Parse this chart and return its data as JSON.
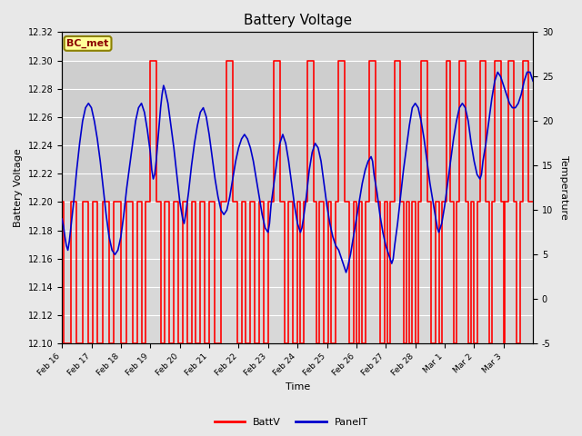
{
  "title": "Battery Voltage",
  "xlabel": "Time",
  "ylabel_left": "Battery Voltage",
  "ylabel_right": "Temperature",
  "ylim_left": [
    12.1,
    12.32
  ],
  "ylim_right": [
    -5,
    30
  ],
  "yticks_left": [
    12.1,
    12.12,
    12.14,
    12.16,
    12.18,
    12.2,
    12.22,
    12.24,
    12.26,
    12.28,
    12.3,
    12.32
  ],
  "yticks_right": [
    -5,
    0,
    5,
    10,
    15,
    20,
    25,
    30
  ],
  "bg_color": "#e8e8e8",
  "plot_bg_color": "#d8d8d8",
  "grid_color": "#ffffff",
  "battv_color": "#ff0000",
  "panelt_color": "#0000cc",
  "annotation_text": "BC_met",
  "annotation_bg": "#ffff99",
  "annotation_border": "#8B8000",
  "legend_battv": "BattV",
  "legend_panelt": "PanelT",
  "shaded_region": [
    12.2,
    12.3
  ],
  "xtick_labels": [
    "Feb 16",
    "Feb 17",
    "Feb 18",
    "Feb 19",
    "Feb 20",
    "Feb 21",
    "Feb 22",
    "Feb 23",
    "Feb 24",
    "Feb 25",
    "Feb 26",
    "Feb 27",
    "Feb 28",
    "Mar 1",
    "Mar 2",
    "Mar 3"
  ],
  "battv_data": [
    [
      0.0,
      12.2
    ],
    [
      0.05,
      12.2
    ],
    [
      0.05,
      12.1
    ],
    [
      0.3,
      12.1
    ],
    [
      0.3,
      12.2
    ],
    [
      0.5,
      12.2
    ],
    [
      0.5,
      12.1
    ],
    [
      0.7,
      12.1
    ],
    [
      0.7,
      12.2
    ],
    [
      0.9,
      12.2
    ],
    [
      0.9,
      12.1
    ],
    [
      1.05,
      12.1
    ],
    [
      1.05,
      12.2
    ],
    [
      1.2,
      12.2
    ],
    [
      1.2,
      12.1
    ],
    [
      1.4,
      12.1
    ],
    [
      1.4,
      12.2
    ],
    [
      1.6,
      12.2
    ],
    [
      1.6,
      12.1
    ],
    [
      1.75,
      12.1
    ],
    [
      1.75,
      12.2
    ],
    [
      2.0,
      12.2
    ],
    [
      2.0,
      12.1
    ],
    [
      2.2,
      12.1
    ],
    [
      2.2,
      12.2
    ],
    [
      2.4,
      12.2
    ],
    [
      2.4,
      12.1
    ],
    [
      2.55,
      12.1
    ],
    [
      2.55,
      12.2
    ],
    [
      2.7,
      12.2
    ],
    [
      2.7,
      12.1
    ],
    [
      2.85,
      12.1
    ],
    [
      2.85,
      12.2
    ],
    [
      3.0,
      12.2
    ],
    [
      3.0,
      12.3
    ],
    [
      3.2,
      12.3
    ],
    [
      3.2,
      12.2
    ],
    [
      3.35,
      12.2
    ],
    [
      3.35,
      12.1
    ],
    [
      3.5,
      12.1
    ],
    [
      3.5,
      12.2
    ],
    [
      3.65,
      12.2
    ],
    [
      3.65,
      12.1
    ],
    [
      3.8,
      12.1
    ],
    [
      3.8,
      12.2
    ],
    [
      3.95,
      12.2
    ],
    [
      3.95,
      12.1
    ],
    [
      4.1,
      12.1
    ],
    [
      4.1,
      12.2
    ],
    [
      4.25,
      12.2
    ],
    [
      4.25,
      12.1
    ],
    [
      4.4,
      12.1
    ],
    [
      4.4,
      12.2
    ],
    [
      4.55,
      12.2
    ],
    [
      4.55,
      12.1
    ],
    [
      4.7,
      12.1
    ],
    [
      4.7,
      12.2
    ],
    [
      4.85,
      12.2
    ],
    [
      4.85,
      12.1
    ],
    [
      5.0,
      12.1
    ],
    [
      5.0,
      12.2
    ],
    [
      5.2,
      12.2
    ],
    [
      5.2,
      12.1
    ],
    [
      5.4,
      12.1
    ],
    [
      5.4,
      12.2
    ],
    [
      5.6,
      12.2
    ],
    [
      5.6,
      12.3
    ],
    [
      5.8,
      12.3
    ],
    [
      5.8,
      12.2
    ],
    [
      5.95,
      12.2
    ],
    [
      5.95,
      12.1
    ],
    [
      6.1,
      12.1
    ],
    [
      6.1,
      12.2
    ],
    [
      6.25,
      12.2
    ],
    [
      6.25,
      12.1
    ],
    [
      6.4,
      12.1
    ],
    [
      6.4,
      12.2
    ],
    [
      6.55,
      12.2
    ],
    [
      6.55,
      12.1
    ],
    [
      6.7,
      12.1
    ],
    [
      6.7,
      12.2
    ],
    [
      6.85,
      12.2
    ],
    [
      6.85,
      12.1
    ],
    [
      7.0,
      12.1
    ],
    [
      7.0,
      12.2
    ],
    [
      7.2,
      12.2
    ],
    [
      7.2,
      12.3
    ],
    [
      7.4,
      12.3
    ],
    [
      7.4,
      12.2
    ],
    [
      7.55,
      12.2
    ],
    [
      7.55,
      12.1
    ],
    [
      7.7,
      12.1
    ],
    [
      7.7,
      12.2
    ],
    [
      7.85,
      12.2
    ],
    [
      7.85,
      12.1
    ],
    [
      8.0,
      12.1
    ],
    [
      8.0,
      12.2
    ],
    [
      8.1,
      12.2
    ],
    [
      8.1,
      12.1
    ],
    [
      8.2,
      12.1
    ],
    [
      8.2,
      12.2
    ],
    [
      8.35,
      12.2
    ],
    [
      8.35,
      12.3
    ],
    [
      8.55,
      12.3
    ],
    [
      8.55,
      12.2
    ],
    [
      8.65,
      12.2
    ],
    [
      8.65,
      12.1
    ],
    [
      8.75,
      12.1
    ],
    [
      8.75,
      12.2
    ],
    [
      8.9,
      12.2
    ],
    [
      8.9,
      12.1
    ],
    [
      9.05,
      12.1
    ],
    [
      9.05,
      12.2
    ],
    [
      9.15,
      12.2
    ],
    [
      9.15,
      12.1
    ],
    [
      9.3,
      12.1
    ],
    [
      9.3,
      12.2
    ],
    [
      9.4,
      12.2
    ],
    [
      9.4,
      12.3
    ],
    [
      9.6,
      12.3
    ],
    [
      9.6,
      12.2
    ],
    [
      9.75,
      12.2
    ],
    [
      9.75,
      12.1
    ],
    [
      9.9,
      12.1
    ],
    [
      9.9,
      12.2
    ],
    [
      10.0,
      12.2
    ],
    [
      10.0,
      12.1
    ],
    [
      10.1,
      12.1
    ],
    [
      10.1,
      12.2
    ],
    [
      10.2,
      12.2
    ],
    [
      10.2,
      12.1
    ],
    [
      10.3,
      12.1
    ],
    [
      10.3,
      12.2
    ],
    [
      10.45,
      12.2
    ],
    [
      10.45,
      12.3
    ],
    [
      10.65,
      12.3
    ],
    [
      10.65,
      12.2
    ],
    [
      10.8,
      12.2
    ],
    [
      10.8,
      12.1
    ],
    [
      10.95,
      12.1
    ],
    [
      10.95,
      12.2
    ],
    [
      11.05,
      12.2
    ],
    [
      11.05,
      12.1
    ],
    [
      11.15,
      12.1
    ],
    [
      11.15,
      12.2
    ],
    [
      11.3,
      12.2
    ],
    [
      11.3,
      12.3
    ],
    [
      11.5,
      12.3
    ],
    [
      11.5,
      12.2
    ],
    [
      11.6,
      12.2
    ],
    [
      11.6,
      12.1
    ],
    [
      11.7,
      12.1
    ],
    [
      11.7,
      12.2
    ],
    [
      11.8,
      12.2
    ],
    [
      11.8,
      12.1
    ],
    [
      11.9,
      12.1
    ],
    [
      11.9,
      12.2
    ],
    [
      12.0,
      12.2
    ],
    [
      12.0,
      12.1
    ],
    [
      12.1,
      12.1
    ],
    [
      12.1,
      12.2
    ],
    [
      12.2,
      12.2
    ],
    [
      12.2,
      12.3
    ],
    [
      12.4,
      12.3
    ],
    [
      12.4,
      12.2
    ],
    [
      12.55,
      12.2
    ],
    [
      12.55,
      12.1
    ],
    [
      12.7,
      12.1
    ],
    [
      12.7,
      12.2
    ],
    [
      12.8,
      12.2
    ],
    [
      12.8,
      12.1
    ],
    [
      12.9,
      12.1
    ],
    [
      12.9,
      12.2
    ],
    [
      13.05,
      12.2
    ],
    [
      13.05,
      12.3
    ],
    [
      13.2,
      12.3
    ],
    [
      13.2,
      12.2
    ],
    [
      13.3,
      12.2
    ],
    [
      13.3,
      12.1
    ],
    [
      13.4,
      12.1
    ],
    [
      13.4,
      12.2
    ],
    [
      13.5,
      12.2
    ],
    [
      13.5,
      12.3
    ],
    [
      13.7,
      12.3
    ],
    [
      13.7,
      12.2
    ],
    [
      13.8,
      12.2
    ],
    [
      13.8,
      12.1
    ],
    [
      13.9,
      12.1
    ],
    [
      13.9,
      12.2
    ],
    [
      14.0,
      12.2
    ],
    [
      14.0,
      12.1
    ],
    [
      14.1,
      12.1
    ],
    [
      14.1,
      12.2
    ],
    [
      14.2,
      12.2
    ],
    [
      14.2,
      12.3
    ],
    [
      14.4,
      12.3
    ],
    [
      14.4,
      12.2
    ],
    [
      14.5,
      12.2
    ],
    [
      14.5,
      12.1
    ],
    [
      14.6,
      12.1
    ],
    [
      14.6,
      12.2
    ],
    [
      14.7,
      12.2
    ],
    [
      14.7,
      12.3
    ],
    [
      14.9,
      12.3
    ],
    [
      14.9,
      12.2
    ],
    [
      15.0,
      12.2
    ],
    [
      15.0,
      12.1
    ],
    [
      15.05,
      12.1
    ],
    [
      15.05,
      12.2
    ],
    [
      15.15,
      12.2
    ],
    [
      15.15,
      12.3
    ],
    [
      15.35,
      12.3
    ],
    [
      15.35,
      12.2
    ],
    [
      15.45,
      12.2
    ],
    [
      15.45,
      12.1
    ],
    [
      15.55,
      12.1
    ],
    [
      15.55,
      12.2
    ],
    [
      15.65,
      12.2
    ],
    [
      15.65,
      12.3
    ],
    [
      15.85,
      12.3
    ],
    [
      15.85,
      12.2
    ],
    [
      16.0,
      12.2
    ]
  ],
  "panelt_data": [
    [
      0.0,
      9.0
    ],
    [
      0.05,
      8.2
    ],
    [
      0.1,
      7.0
    ],
    [
      0.15,
      6.0
    ],
    [
      0.2,
      5.5
    ],
    [
      0.25,
      6.5
    ],
    [
      0.3,
      8.0
    ],
    [
      0.4,
      11.0
    ],
    [
      0.5,
      14.5
    ],
    [
      0.6,
      17.5
    ],
    [
      0.7,
      20.0
    ],
    [
      0.8,
      21.5
    ],
    [
      0.9,
      22.0
    ],
    [
      1.0,
      21.5
    ],
    [
      1.1,
      20.0
    ],
    [
      1.2,
      18.0
    ],
    [
      1.3,
      15.5
    ],
    [
      1.4,
      12.5
    ],
    [
      1.5,
      9.5
    ],
    [
      1.6,
      7.0
    ],
    [
      1.7,
      5.5
    ],
    [
      1.8,
      5.0
    ],
    [
      1.9,
      5.5
    ],
    [
      2.0,
      7.0
    ],
    [
      2.1,
      9.5
    ],
    [
      2.2,
      12.5
    ],
    [
      2.3,
      15.0
    ],
    [
      2.4,
      17.5
    ],
    [
      2.5,
      20.0
    ],
    [
      2.6,
      21.5
    ],
    [
      2.7,
      22.0
    ],
    [
      2.8,
      21.0
    ],
    [
      2.9,
      19.0
    ],
    [
      3.0,
      16.5
    ],
    [
      3.05,
      14.5
    ],
    [
      3.1,
      13.5
    ],
    [
      3.15,
      14.0
    ],
    [
      3.2,
      15.5
    ],
    [
      3.25,
      17.5
    ],
    [
      3.3,
      19.5
    ],
    [
      3.35,
      21.5
    ],
    [
      3.4,
      23.0
    ],
    [
      3.45,
      24.0
    ],
    [
      3.5,
      23.5
    ],
    [
      3.6,
      22.0
    ],
    [
      3.7,
      19.5
    ],
    [
      3.8,
      17.0
    ],
    [
      3.9,
      14.0
    ],
    [
      4.0,
      11.0
    ],
    [
      4.1,
      9.0
    ],
    [
      4.15,
      8.5
    ],
    [
      4.2,
      9.5
    ],
    [
      4.3,
      12.0
    ],
    [
      4.4,
      15.0
    ],
    [
      4.5,
      17.5
    ],
    [
      4.6,
      19.5
    ],
    [
      4.7,
      21.0
    ],
    [
      4.8,
      21.5
    ],
    [
      4.9,
      20.5
    ],
    [
      5.0,
      18.5
    ],
    [
      5.1,
      16.0
    ],
    [
      5.2,
      13.5
    ],
    [
      5.3,
      11.5
    ],
    [
      5.4,
      10.0
    ],
    [
      5.5,
      9.5
    ],
    [
      5.6,
      10.0
    ],
    [
      5.7,
      11.5
    ],
    [
      5.8,
      13.5
    ],
    [
      5.9,
      15.5
    ],
    [
      6.0,
      17.0
    ],
    [
      6.1,
      18.0
    ],
    [
      6.2,
      18.5
    ],
    [
      6.3,
      18.0
    ],
    [
      6.4,
      17.0
    ],
    [
      6.5,
      15.5
    ],
    [
      6.6,
      13.5
    ],
    [
      6.7,
      11.5
    ],
    [
      6.8,
      9.5
    ],
    [
      6.9,
      8.0
    ],
    [
      7.0,
      7.5
    ],
    [
      7.05,
      8.5
    ],
    [
      7.1,
      10.5
    ],
    [
      7.2,
      13.0
    ],
    [
      7.3,
      15.5
    ],
    [
      7.4,
      17.5
    ],
    [
      7.5,
      18.5
    ],
    [
      7.6,
      17.5
    ],
    [
      7.7,
      15.5
    ],
    [
      7.8,
      13.0
    ],
    [
      7.9,
      10.5
    ],
    [
      8.0,
      8.5
    ],
    [
      8.1,
      7.5
    ],
    [
      8.15,
      8.0
    ],
    [
      8.2,
      9.0
    ],
    [
      8.3,
      11.5
    ],
    [
      8.4,
      14.5
    ],
    [
      8.5,
      16.5
    ],
    [
      8.6,
      17.5
    ],
    [
      8.7,
      17.0
    ],
    [
      8.8,
      15.5
    ],
    [
      8.9,
      13.0
    ],
    [
      9.0,
      10.5
    ],
    [
      9.1,
      8.5
    ],
    [
      9.2,
      7.0
    ],
    [
      9.3,
      6.0
    ],
    [
      9.4,
      5.5
    ],
    [
      9.5,
      4.5
    ],
    [
      9.6,
      3.5
    ],
    [
      9.65,
      3.0
    ],
    [
      9.7,
      3.5
    ],
    [
      9.8,
      5.0
    ],
    [
      9.9,
      7.0
    ],
    [
      10.0,
      9.0
    ],
    [
      10.1,
      11.0
    ],
    [
      10.2,
      13.0
    ],
    [
      10.3,
      14.5
    ],
    [
      10.4,
      15.5
    ],
    [
      10.5,
      16.0
    ],
    [
      10.55,
      15.5
    ],
    [
      10.6,
      14.0
    ],
    [
      10.7,
      12.0
    ],
    [
      10.8,
      9.5
    ],
    [
      10.9,
      7.5
    ],
    [
      11.0,
      6.0
    ],
    [
      11.05,
      5.5
    ],
    [
      11.1,
      5.0
    ],
    [
      11.15,
      4.5
    ],
    [
      11.2,
      4.0
    ],
    [
      11.25,
      4.5
    ],
    [
      11.3,
      6.0
    ],
    [
      11.4,
      8.5
    ],
    [
      11.5,
      11.5
    ],
    [
      11.6,
      14.5
    ],
    [
      11.7,
      17.0
    ],
    [
      11.8,
      19.5
    ],
    [
      11.9,
      21.5
    ],
    [
      12.0,
      22.0
    ],
    [
      12.1,
      21.5
    ],
    [
      12.2,
      20.0
    ],
    [
      12.3,
      18.0
    ],
    [
      12.4,
      15.5
    ],
    [
      12.5,
      13.0
    ],
    [
      12.6,
      11.0
    ],
    [
      12.7,
      9.0
    ],
    [
      12.75,
      8.0
    ],
    [
      12.8,
      7.5
    ],
    [
      12.9,
      8.5
    ],
    [
      13.0,
      10.5
    ],
    [
      13.1,
      13.0
    ],
    [
      13.2,
      15.5
    ],
    [
      13.3,
      18.0
    ],
    [
      13.4,
      20.0
    ],
    [
      13.5,
      21.5
    ],
    [
      13.6,
      22.0
    ],
    [
      13.7,
      21.5
    ],
    [
      13.8,
      20.0
    ],
    [
      13.9,
      17.5
    ],
    [
      14.0,
      15.5
    ],
    [
      14.1,
      14.0
    ],
    [
      14.2,
      13.5
    ],
    [
      14.25,
      14.0
    ],
    [
      14.3,
      15.5
    ],
    [
      14.4,
      17.5
    ],
    [
      14.5,
      20.0
    ],
    [
      14.6,
      22.5
    ],
    [
      14.7,
      24.5
    ],
    [
      14.8,
      25.5
    ],
    [
      14.9,
      25.0
    ],
    [
      15.0,
      24.0
    ],
    [
      15.1,
      23.0
    ],
    [
      15.2,
      22.0
    ],
    [
      15.3,
      21.5
    ],
    [
      15.4,
      21.5
    ],
    [
      15.5,
      22.0
    ],
    [
      15.6,
      23.0
    ],
    [
      15.7,
      24.5
    ],
    [
      15.8,
      25.5
    ],
    [
      15.9,
      25.5
    ],
    [
      16.0,
      24.5
    ]
  ]
}
